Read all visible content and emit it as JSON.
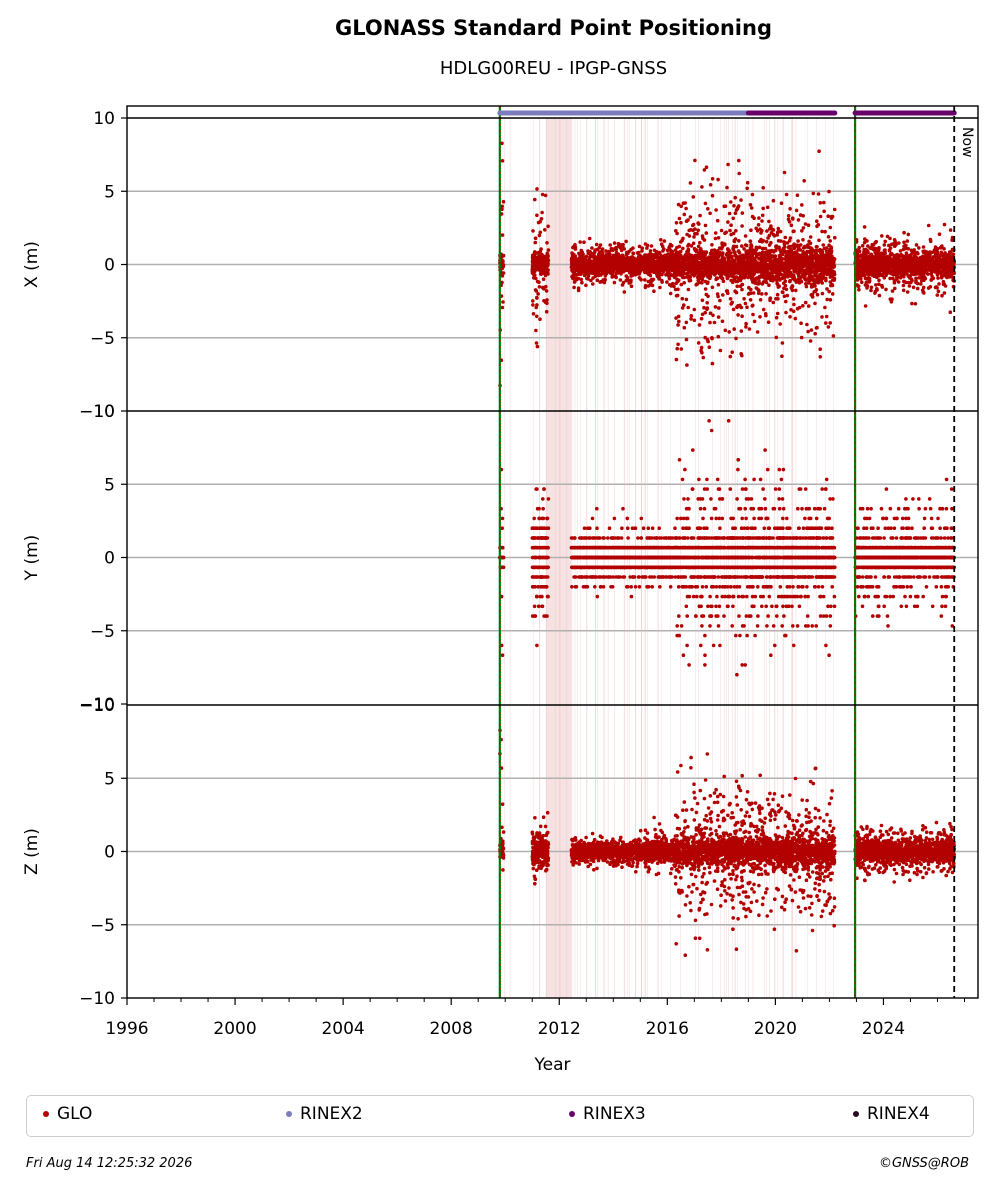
{
  "chart_data": {
    "type": "scatter",
    "title": "GLONASS Standard Point Positioning",
    "subtitle": "HDLG00REU - IPGP-GNSS",
    "xlabel": "Year",
    "x_ticks": [
      "1996",
      "2000",
      "2004",
      "2008",
      "2012",
      "2016",
      "2020",
      "2024"
    ],
    "xlim": [
      1996,
      2027.5
    ],
    "y_ticks": [
      "−10",
      "−5",
      "0",
      "5",
      "10"
    ],
    "panels": [
      {
        "ylabel": "X (m)",
        "ylim": [
          -10,
          10
        ]
      },
      {
        "ylabel": "Y (m)",
        "ylim": [
          -10,
          10
        ]
      },
      {
        "ylabel": "Z (m)",
        "ylim": [
          -10,
          10
        ]
      }
    ],
    "now_label": "Now",
    "now_x": 2026.62,
    "green_lines_x": [
      2009.8,
      2022.95
    ],
    "shaded_span_x": [
      2011.5,
      2012.45
    ],
    "series": [
      {
        "name": "GLO",
        "color": "#b30000",
        "marker": "dot"
      },
      {
        "name": "RINEX2",
        "color": "#7b7bbd",
        "marker": "dot"
      },
      {
        "name": "RINEX3",
        "color": "#6a006a",
        "marker": "dot"
      },
      {
        "name": "RINEX4",
        "color": "#2a0a1e",
        "marker": "dot"
      }
    ],
    "rinex_bars": [
      {
        "format": "RINEX2",
        "start": 2009.8,
        "end": 2019.0
      },
      {
        "format": "RINEX3",
        "start": 2019.0,
        "end": 2022.2
      },
      {
        "format": "RINEX3",
        "start": 2022.95,
        "end": 2026.62
      }
    ],
    "segments": [
      {
        "start": 2009.8,
        "end": 2009.95,
        "spread": [
          7.0,
          6.0,
          4.5
        ],
        "core": [
          0.6,
          0.6,
          0.6
        ]
      },
      {
        "start": 2011.0,
        "end": 2011.6,
        "spread": [
          2.5,
          2.5,
          1.2
        ],
        "core": [
          0.8,
          2.5,
          1.0
        ]
      },
      {
        "start": 2012.45,
        "end": 2015.0,
        "spread": [
          0.9,
          1.2,
          0.6
        ],
        "core": [
          0.6,
          1.0,
          0.5
        ]
      },
      {
        "start": 2015.0,
        "end": 2016.3,
        "spread": [
          1.0,
          1.2,
          0.9
        ],
        "core": [
          0.6,
          1.0,
          0.6
        ]
      },
      {
        "start": 2016.3,
        "end": 2019.0,
        "spread": [
          3.5,
          3.5,
          3.0
        ],
        "core": [
          1.0,
          1.5,
          1.0
        ]
      },
      {
        "start": 2019.0,
        "end": 2022.2,
        "spread": [
          3.0,
          3.0,
          2.5
        ],
        "core": [
          1.2,
          1.5,
          1.0
        ]
      },
      {
        "start": 2022.95,
        "end": 2026.62,
        "spread": [
          1.2,
          2.0,
          1.0
        ],
        "core": [
          0.8,
          0.9,
          0.7
        ]
      }
    ]
  },
  "legend": {
    "items": [
      {
        "label": "GLO",
        "color": "#b30000"
      },
      {
        "label": "RINEX2",
        "color": "#7b7bbd"
      },
      {
        "label": "RINEX3",
        "color": "#6a006a"
      },
      {
        "label": "RINEX4",
        "color": "#2a0a1e"
      }
    ]
  },
  "footer": {
    "timestamp": "Fri Aug 14 12:25:32 2026",
    "credit": "©GNSS@ROB"
  }
}
